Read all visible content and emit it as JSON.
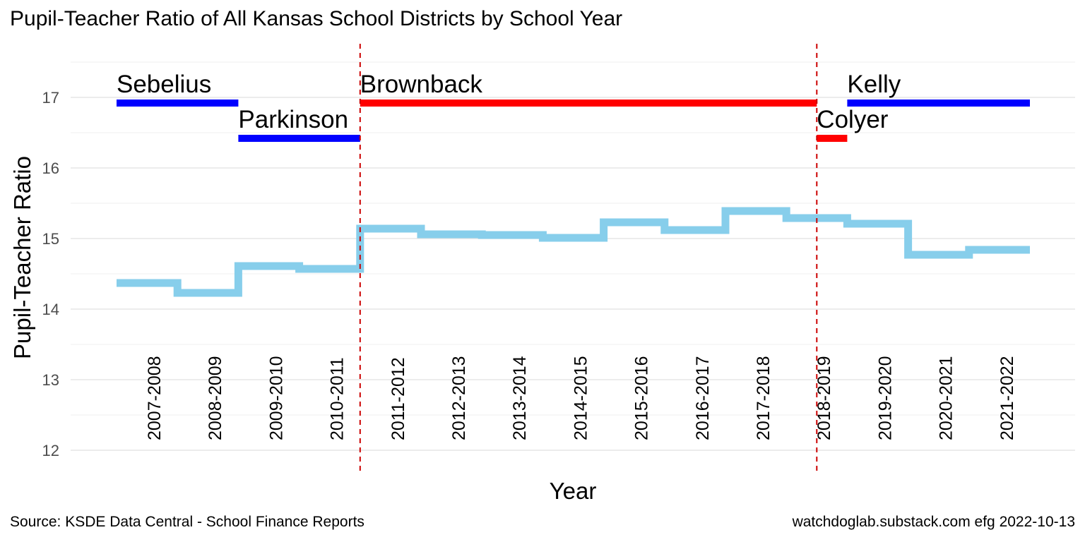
{
  "chart_data": {
    "type": "line",
    "title": "Pupil-Teacher Ratio of All Kansas School Districts by School Year",
    "xlabel": "Year",
    "ylabel": "Pupil-Teacher Ratio",
    "ylim": [
      12,
      17.5
    ],
    "yticks": [
      12,
      13,
      14,
      15,
      16,
      17
    ],
    "grid": true,
    "step": true,
    "categories": [
      "2007-2008",
      "2008-2009",
      "2009-2010",
      "2010-2011",
      "2011-2012",
      "2012-2013",
      "2013-2014",
      "2014-2015",
      "2015-2016",
      "2016-2017",
      "2017-2018",
      "2018-2019",
      "2019-2020",
      "2020-2021",
      "2021-2022"
    ],
    "series": [
      {
        "values": [
          14.37,
          14.23,
          14.61,
          14.57,
          15.14,
          15.06,
          15.05,
          15.01,
          15.23,
          15.12,
          15.39,
          15.29,
          15.21,
          14.77,
          14.84
        ],
        "color": "#87CEEB"
      }
    ],
    "governors": [
      {
        "name": "Sebelius",
        "start": 2007.0,
        "end": 2009.0,
        "y": 16.92,
        "color": "#0000FF"
      },
      {
        "name": "Parkinson",
        "start": 2009.0,
        "end": 2011.0,
        "y": 16.42,
        "color": "#0000FF"
      },
      {
        "name": "Brownback",
        "start": 2011.0,
        "end": 2018.5,
        "y": 16.92,
        "color": "#FF0000"
      },
      {
        "name": "Colyer",
        "start": 2018.5,
        "end": 2019.0,
        "y": 16.42,
        "color": "#FF0000"
      },
      {
        "name": "Kelly",
        "start": 2019.0,
        "end": 2022.0,
        "y": 16.92,
        "color": "#0000FF"
      }
    ],
    "vlines": [
      2011.0,
      2018.5
    ],
    "vline_color": "#CC0000",
    "caption_left": "Source:  KSDE Data Central - School Finance Reports",
    "caption_right": "watchdoglab.substack.com  efg 2022-10-13"
  }
}
